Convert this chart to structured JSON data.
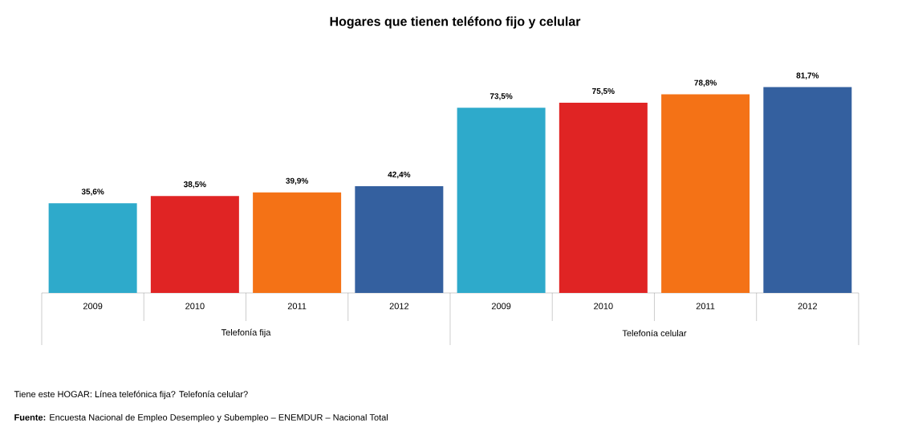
{
  "chart_data": {
    "type": "bar",
    "title": "Hogares que tienen teléfono fijo y celular",
    "categories": [
      "2009",
      "2010",
      "2011",
      "2012",
      "2009",
      "2010",
      "2011",
      "2012"
    ],
    "values": [
      35.6,
      38.5,
      39.9,
      42.4,
      73.5,
      75.5,
      78.8,
      81.7
    ],
    "value_labels": [
      "35,6%",
      "38,5%",
      "39,9%",
      "42,4%",
      "73,5%",
      "75,5%",
      "78,8%",
      "81,7%"
    ],
    "colors": [
      "#2eaacb",
      "#e02424",
      "#f47216",
      "#34609f",
      "#2eaacb",
      "#e02424",
      "#f47216",
      "#34609f"
    ],
    "annotations": [
      "Telefonía fija",
      "Telefonía celular",
      "Tiene este HOGAR: Línea telefónica fija? Telefonía celular?",
      "**Fuente:** Encuesta Nacional de Empleo Desempleo y Subempleo – ENEMDUR – Nacional Total"
    ]
  }
}
